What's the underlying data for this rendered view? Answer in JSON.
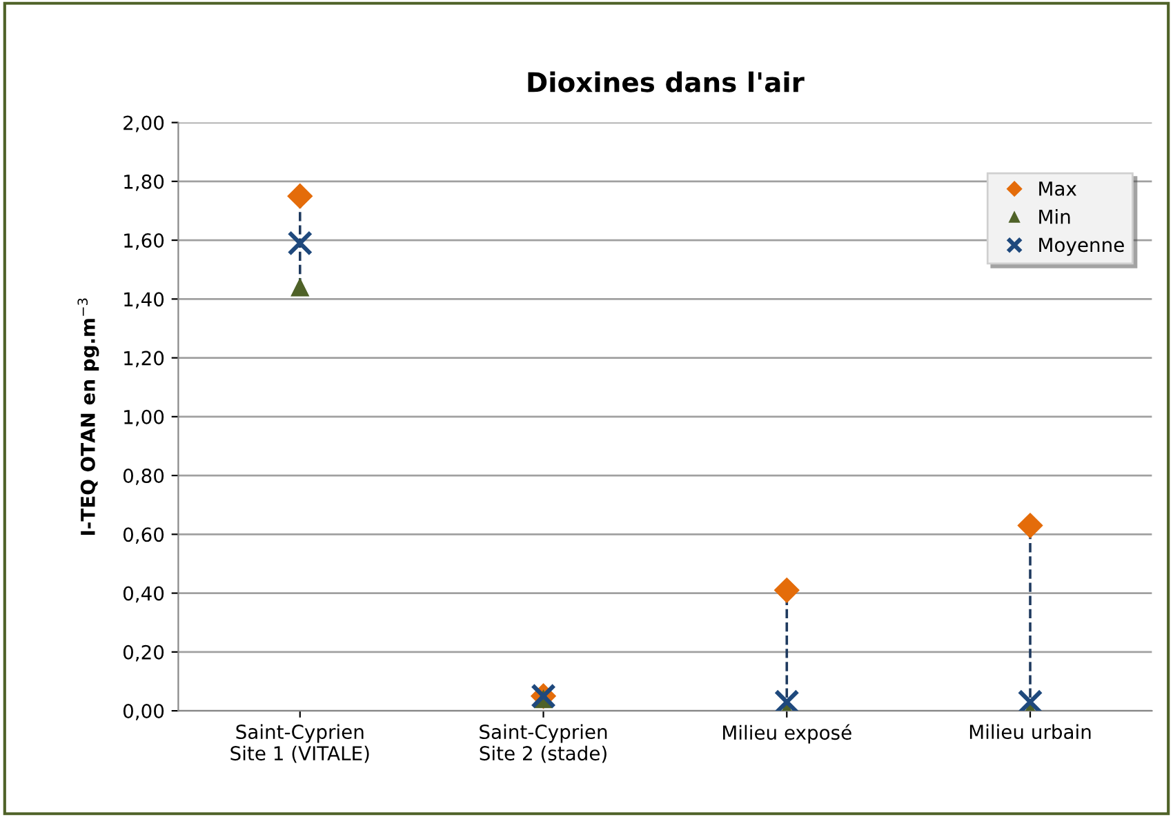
{
  "chart_data": {
    "type": "scatter",
    "title": "Dioxines dans l'air",
    "ylabel": "I-TEQ OTAN en pg.m$^{−3}$",
    "categories": [
      "Saint-Cyprien\nSite 1 (VITALE)",
      "Saint-Cyprien\nSite 2 (stade)",
      "Milieu exposé",
      "Milieu urbain"
    ],
    "series": [
      {
        "name": "Max",
        "color": "#e46c0a",
        "marker": "diamond",
        "values": [
          1.75,
          0.05,
          0.41,
          0.63
        ]
      },
      {
        "name": "Min",
        "color": "#4f6228",
        "marker": "triangle",
        "values": [
          1.44,
          0.04,
          0.0,
          0.0
        ]
      },
      {
        "name": "Moyenne",
        "color": "#1f497d",
        "marker": "cross",
        "values": [
          1.59,
          0.05,
          0.03,
          0.03
        ]
      }
    ],
    "ylim": [
      0,
      2
    ],
    "yticks": [
      {
        "value": 0,
        "label": "0,00"
      },
      {
        "value": 0.2,
        "label": "0,20"
      },
      {
        "value": 0.4,
        "label": "0,40"
      },
      {
        "value": 0.6,
        "label": "0,60"
      },
      {
        "value": 0.8,
        "label": "0,80"
      },
      {
        "value": 1.0,
        "label": "1,00"
      },
      {
        "value": 1.2,
        "label": "1,20"
      },
      {
        "value": 1.4,
        "label": "1,40"
      },
      {
        "value": 1.6,
        "label": "1,60"
      },
      {
        "value": 1.8,
        "label": "1,80"
      },
      {
        "value": 2.0,
        "label": "2,00"
      }
    ],
    "grid": "y",
    "legend": "top right"
  }
}
